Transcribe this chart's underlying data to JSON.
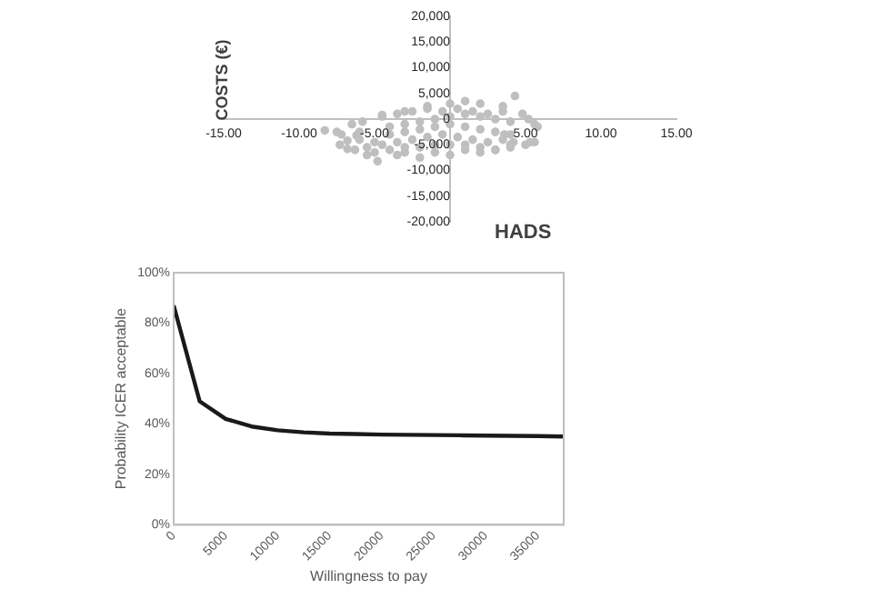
{
  "chart_data": [
    {
      "type": "scatter",
      "xlabel": "HADS",
      "ylabel": "COSTS (€)",
      "color": "#bfbfbf",
      "marker": "circle",
      "grid": false,
      "xlim": [
        -15,
        15
      ],
      "ylim": [
        -20000,
        20000
      ],
      "xticks": [
        {
          "value": -15,
          "label": "-15.00"
        },
        {
          "value": -10,
          "label": "-10.00"
        },
        {
          "value": -5,
          "label": "-5.00"
        },
        {
          "value": 5,
          "label": "5.00"
        },
        {
          "value": 10,
          "label": "10.00"
        },
        {
          "value": 15,
          "label": "15.00"
        }
      ],
      "yticks": [
        {
          "value": -20000,
          "label": "-20,000"
        },
        {
          "value": -15000,
          "label": "-15,000"
        },
        {
          "value": -10000,
          "label": "-10,000"
        },
        {
          "value": -5000,
          "label": "-5,000"
        },
        0,
        {
          "value": 5000,
          "label": "5,000"
        },
        {
          "value": 10000,
          "label": "10,000"
        },
        {
          "value": 15000,
          "label": "15,000"
        },
        {
          "value": 20000,
          "label": "20,000"
        }
      ],
      "x": [
        -8.3,
        -7.2,
        -7.3,
        -6.8,
        -6.5,
        -5.8,
        -4.5,
        -3,
        -1.5,
        0,
        1,
        2,
        3.5,
        4.3,
        4.8,
        5.2,
        5.8,
        5.6,
        5,
        4,
        2,
        0,
        -2,
        -3.5,
        -4.8,
        -5.5,
        -6.3,
        -6,
        -6.2,
        -4,
        -3,
        -2,
        -1,
        0,
        1,
        2,
        3,
        4,
        -6,
        -5,
        -4,
        -3,
        -2,
        -1,
        0,
        1,
        2,
        3,
        4,
        4.2,
        -5.5,
        -4.5,
        -3.5,
        -2.5,
        -1.5,
        -0.5,
        0.5,
        1.5,
        2.5,
        3.5,
        3.6,
        -5,
        -4,
        -3,
        -2,
        -1,
        0,
        1,
        2,
        3,
        4,
        -4.5,
        -3.5,
        -2.5,
        -1.5,
        -0.5,
        0.5,
        1.5,
        2.5,
        3.5,
        -3,
        -1,
        1,
        3,
        -7.5,
        -6.8,
        5.6,
        5.3
      ],
      "values": [
        -2200,
        -3000,
        -5000,
        -5800,
        -1000,
        -500,
        800,
        1500,
        2500,
        3000,
        3500,
        3000,
        2500,
        4500,
        1000,
        0,
        -1500,
        -4500,
        -5000,
        -5500,
        -6500,
        -7000,
        -7500,
        -7000,
        -8200,
        -7000,
        -6000,
        -2500,
        -3200,
        -1500,
        -1000,
        -500,
        0,
        500,
        1000,
        500,
        0,
        -500,
        -4000,
        -4500,
        -3000,
        -2500,
        -2000,
        -1500,
        -1000,
        -1500,
        -2000,
        -2500,
        -3000,
        -4500,
        -5500,
        -5000,
        -4500,
        -4000,
        -3500,
        -3000,
        -3500,
        -4000,
        -4500,
        -4000,
        -3000,
        -6500,
        -6000,
        -5500,
        -5500,
        -5000,
        -5000,
        -5000,
        -5500,
        -6000,
        -5000,
        500,
        1000,
        1500,
        2000,
        1500,
        2000,
        1500,
        1000,
        1500,
        -6500,
        -6500,
        -6000,
        -6000,
        -2500,
        -4200,
        -1000,
        -4500
      ]
    },
    {
      "type": "line",
      "xlabel": "Willingness to pay",
      "ylabel": "Probability ICER acceptable",
      "color": "#1a1a1a",
      "marker": "none",
      "grid": false,
      "xlim": [
        0,
        37500
      ],
      "xticks": [
        0,
        5000,
        10000,
        15000,
        20000,
        25000,
        30000,
        35000
      ],
      "ylim": [
        0,
        100
      ],
      "yticks": [
        {
          "value": 0,
          "label": "0%"
        },
        {
          "value": 20,
          "label": "20%"
        },
        {
          "value": 40,
          "label": "40%"
        },
        {
          "value": 60,
          "label": "60%"
        },
        {
          "value": 80,
          "label": "80%"
        },
        {
          "value": 100,
          "label": "100%"
        }
      ],
      "x": [
        0,
        2500,
        5000,
        7500,
        10000,
        12500,
        15000,
        17500,
        20000,
        22500,
        25000,
        27500,
        30000,
        32500,
        35000,
        37500
      ],
      "values": [
        87,
        49,
        42,
        39,
        37.5,
        36.7,
        36.2,
        36,
        35.8,
        35.7,
        35.6,
        35.5,
        35.4,
        35.3,
        35.2,
        35
      ]
    }
  ]
}
